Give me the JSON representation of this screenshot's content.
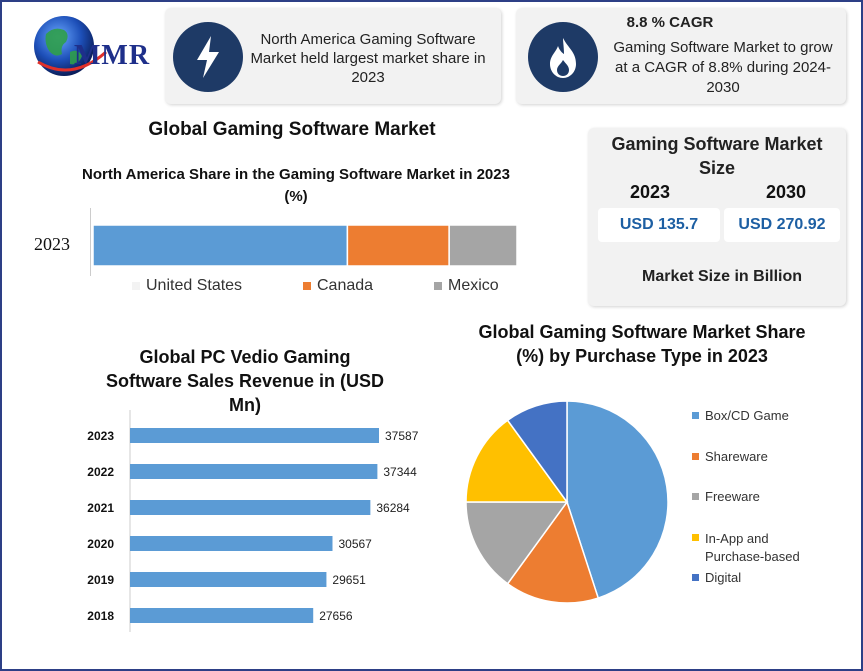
{
  "brand": {
    "logo_text": "MMR"
  },
  "info_cards": [
    {
      "icon": "lightning-icon",
      "text": "North America Gaming Software Market held largest market share in 2023"
    },
    {
      "icon": "flame-icon",
      "heading": "8.8 % CAGR",
      "text": "Gaming Software Market to grow at a CAGR of 8.8% during 2024-2030"
    }
  ],
  "main_title": "Global Gaming Software Market",
  "market_size": {
    "title": "Gaming Software Market Size",
    "year_a": "2023",
    "year_b": "2030",
    "value_a": "USD 135.7",
    "value_b": "USD 270.92",
    "footer": "Market Size in Billion"
  },
  "colors": {
    "blue": "#5b9bd5",
    "orange": "#ed7d31",
    "gray": "#a5a5a5",
    "yellow": "#ffc000",
    "dark_blue": "#4472c4",
    "navy": "#1e3a66",
    "border": "#2d3f86"
  },
  "chart_data": [
    {
      "type": "bar",
      "orientation": "horizontal-stacked",
      "title": "North America Share in the Gaming Software Market in 2023 (%)",
      "categories": [
        "2023"
      ],
      "series": [
        {
          "name": "United States",
          "values": [
            60
          ]
        },
        {
          "name": "Canada",
          "values": [
            24
          ]
        },
        {
          "name": "Mexico",
          "values": [
            16
          ]
        }
      ],
      "xlim": [
        0,
        100
      ],
      "legend": "bottom",
      "grid": false
    },
    {
      "type": "bar",
      "orientation": "horizontal",
      "title": "Global PC Vedio Gaming Software Sales Revenue in (USD Mn)",
      "categories": [
        "2023",
        "2022",
        "2021",
        "2020",
        "2019",
        "2018"
      ],
      "values": [
        37587,
        37344,
        36284,
        30567,
        29651,
        27656
      ],
      "xlim": [
        0,
        45000
      ],
      "data_labels": true,
      "grid": false
    },
    {
      "type": "pie",
      "title": "Global Gaming Software Market Share (%) by Purchase Type in 2023",
      "categories": [
        "Box/CD Game",
        "Shareware",
        "Freeware",
        "In-App and Purchase-based",
        "Digital"
      ],
      "values": [
        45,
        15,
        15,
        15,
        10
      ],
      "legend": "right"
    }
  ]
}
